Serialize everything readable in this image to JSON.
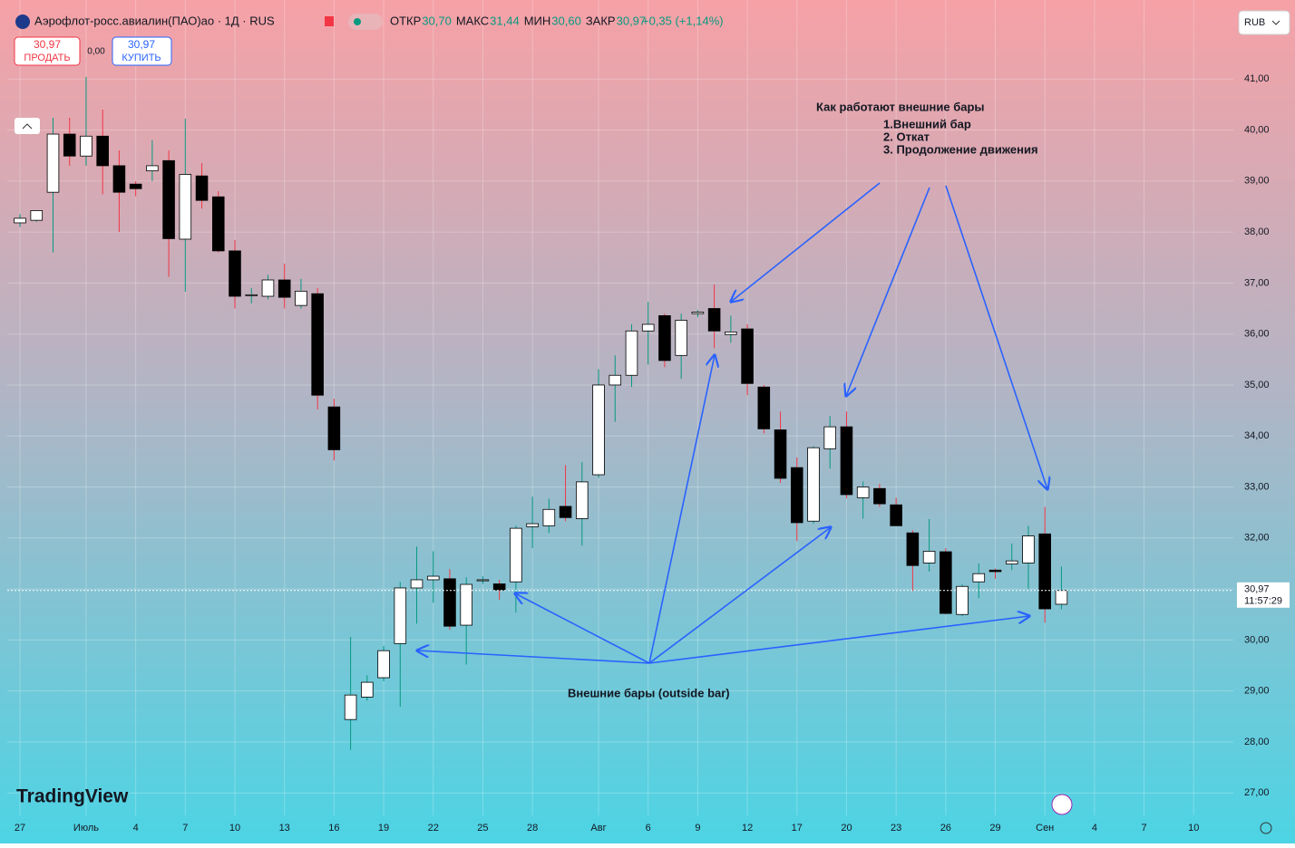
{
  "header": {
    "title": "Аэрофлот-росс.авиалин(ПАО)ао · 1Д · RUS",
    "ohlc": [
      {
        "label": "ОТКР",
        "value": "30,70"
      },
      {
        "label": "МАКС",
        "value": "31,44"
      },
      {
        "label": "МИН",
        "value": "30,60"
      },
      {
        "label": "ЗАКР",
        "value": "30,97"
      }
    ],
    "change": "+0,35 (+1,14%)",
    "currency": "RUB"
  },
  "trade": {
    "sell_price": "30,97",
    "sell_label": "ПРОДАТЬ",
    "spread": "0,00",
    "buy_price": "30,97",
    "buy_label": "КУПИТЬ"
  },
  "logo": "TradingView",
  "chart_data": {
    "type": "candlestick",
    "annotations": [
      "Как работают внешние бары",
      "1.Внешний бар",
      "2. Откат",
      "3. Продолжение движения",
      "Внешние бары (outside bar)"
    ],
    "categories": [
      null,
      null,
      null,
      null,
      null,
      null,
      null,
      null,
      null,
      null,
      null,
      null,
      null,
      null,
      null,
      null,
      null,
      null,
      null,
      null,
      null,
      null,
      null,
      null,
      null,
      null,
      null,
      null,
      null,
      null,
      null,
      null,
      null,
      null,
      null,
      null,
      null,
      null,
      null,
      null,
      null,
      null,
      null,
      null,
      null,
      null,
      null,
      null,
      null,
      null,
      null,
      null,
      null,
      null,
      null,
      null,
      null,
      null,
      null,
      null,
      null,
      null,
      null,
      null
    ],
    "open": [
      38.18,
      38.23,
      38.78,
      39.92,
      39.49,
      39.88,
      39.3,
      38.94,
      39.2,
      39.4,
      37.86,
      39.1,
      38.69,
      37.63,
      36.77,
      36.74,
      37.06,
      36.56,
      36.79,
      34.57,
      28.44,
      28.88,
      29.26,
      29.93,
      31.02,
      31.18,
      31.2,
      30.29,
      31.16,
      31.1,
      31.14,
      32.22,
      32.24,
      32.62,
      32.38,
      33.24,
      35.0,
      35.19,
      36.06,
      36.36,
      35.58,
      36.4,
      36.5,
      35.99,
      36.1,
      34.96,
      34.12,
      33.38,
      32.33,
      33.75,
      34.18,
      32.79,
      32.97,
      32.65,
      32.1,
      31.51,
      31.73,
      30.5,
      31.14,
      31.37,
      31.49,
      31.51,
      32.08,
      30.7
    ],
    "high": [
      38.35,
      38.42,
      40.24,
      40.24,
      41.04,
      40.4,
      39.6,
      39.0,
      39.8,
      39.6,
      40.22,
      39.35,
      38.8,
      37.84,
      36.9,
      37.16,
      37.38,
      37.08,
      36.9,
      34.73,
      30.06,
      29.31,
      29.88,
      31.14,
      31.83,
      31.74,
      31.39,
      31.23,
      31.25,
      31.18,
      32.24,
      32.81,
      32.77,
      33.43,
      33.49,
      35.31,
      35.58,
      36.19,
      36.63,
      36.4,
      36.4,
      36.47,
      36.97,
      36.36,
      36.19,
      35.0,
      34.48,
      33.58,
      33.8,
      34.39,
      34.48,
      33.11,
      33.06,
      32.79,
      32.15,
      32.37,
      31.8,
      31.09,
      31.5,
      31.4,
      31.89,
      32.24,
      32.61,
      31.44
    ],
    "low": [
      38.1,
      38.2,
      37.6,
      39.3,
      39.3,
      38.74,
      38.0,
      38.7,
      39.0,
      37.12,
      36.83,
      38.46,
      37.6,
      36.5,
      36.6,
      36.68,
      36.5,
      36.5,
      34.52,
      33.52,
      27.84,
      28.81,
      29.19,
      28.69,
      30.32,
      30.73,
      30.2,
      29.52,
      31.1,
      30.79,
      30.54,
      31.8,
      32.1,
      32.33,
      31.85,
      33.18,
      34.28,
      34.96,
      35.4,
      35.35,
      35.12,
      36.33,
      35.72,
      35.83,
      34.8,
      34.05,
      33.08,
      31.94,
      32.28,
      33.36,
      32.78,
      32.38,
      32.61,
      32.24,
      30.96,
      31.34,
      30.5,
      30.47,
      30.82,
      31.2,
      31.37,
      31.0,
      30.34,
      30.6
    ],
    "close": [
      38.27,
      38.42,
      39.92,
      39.49,
      39.88,
      39.3,
      38.78,
      38.85,
      39.3,
      37.87,
      39.13,
      38.62,
      37.63,
      36.74,
      36.77,
      37.06,
      36.72,
      36.84,
      34.8,
      33.73,
      28.92,
      29.17,
      29.79,
      31.02,
      31.18,
      31.25,
      30.27,
      31.09,
      31.18,
      30.98,
      32.19,
      32.28,
      32.56,
      32.4,
      33.1,
      35.0,
      35.19,
      36.06,
      36.19,
      35.48,
      36.27,
      36.43,
      36.06,
      36.04,
      35.03,
      34.14,
      33.17,
      32.3,
      33.77,
      34.18,
      32.85,
      33.0,
      32.67,
      32.24,
      31.46,
      31.74,
      30.52,
      31.05,
      31.3,
      31.34,
      31.55,
      32.04,
      30.61,
      30.97
    ],
    "up_color": "#ffffff",
    "down_color": "#000000",
    "wick_up_color": "#089981",
    "wick_down_color": "#f23645",
    "xlim": [
      -0.77,
      73.4
    ],
    "ylim": [
      26.56,
      42.55
    ],
    "xticks": [
      {
        "value": 0,
        "label": "27"
      },
      {
        "value": 4,
        "label": "Июль"
      },
      {
        "value": 7,
        "label": "4"
      },
      {
        "value": 10,
        "label": "7"
      },
      {
        "value": 13,
        "label": "10"
      },
      {
        "value": 16,
        "label": "13"
      },
      {
        "value": 19,
        "label": "16"
      },
      {
        "value": 22,
        "label": "19"
      },
      {
        "value": 25,
        "label": "22"
      },
      {
        "value": 28,
        "label": "25"
      },
      {
        "value": 31,
        "label": "28"
      },
      {
        "value": 35,
        "label": "Авг"
      },
      {
        "value": 38,
        "label": "6"
      },
      {
        "value": 41,
        "label": "9"
      },
      {
        "value": 44,
        "label": "12"
      },
      {
        "value": 47,
        "label": "17"
      },
      {
        "value": 50,
        "label": "20"
      },
      {
        "value": 53,
        "label": "23"
      },
      {
        "value": 56,
        "label": "26"
      },
      {
        "value": 59,
        "label": "29"
      },
      {
        "value": 62,
        "label": "Сен"
      },
      {
        "value": 65,
        "label": "4"
      },
      {
        "value": 68,
        "label": "7"
      },
      {
        "value": 71,
        "label": "10"
      }
    ],
    "yticks": [
      {
        "value": 27,
        "label": "27,00"
      },
      {
        "value": 28,
        "label": "28,00"
      },
      {
        "value": 29,
        "label": "29,00"
      },
      {
        "value": 30,
        "label": "30,00"
      },
      {
        "value": 31,
        "label": "31,00"
      },
      {
        "value": 32,
        "label": "32,00"
      },
      {
        "value": 33,
        "label": "33,00"
      },
      {
        "value": 34,
        "label": "34,00"
      },
      {
        "value": 35,
        "label": "35,00"
      },
      {
        "value": 36,
        "label": "36,00"
      },
      {
        "value": 37,
        "label": "37,00"
      },
      {
        "value": 38,
        "label": "38,00"
      },
      {
        "value": 39,
        "label": "39,00"
      },
      {
        "value": 40,
        "label": "40,00"
      },
      {
        "value": 41,
        "label": "41,00"
      }
    ],
    "grid": true,
    "last_price": {
      "value": 30.97,
      "label": "30,97"
    },
    "countdown": "11:57:29"
  }
}
